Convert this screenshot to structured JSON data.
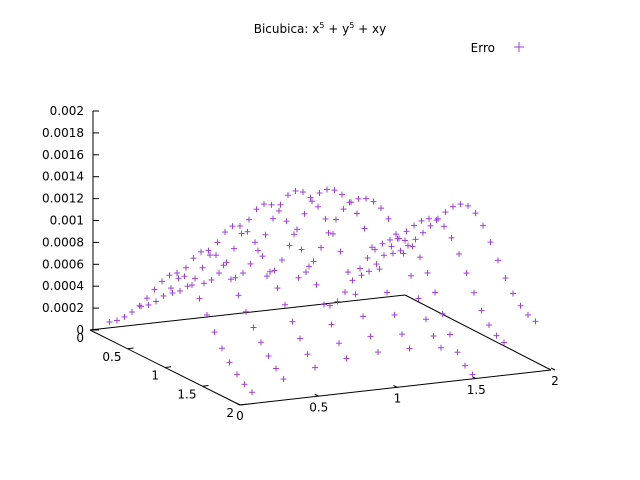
{
  "chart_data": {
    "type": "scatter",
    "title": {
      "main": "Bicubica: x",
      "exp1": "5",
      "mid": " + y",
      "exp2": "5",
      "tail": " + xy"
    },
    "legend": {
      "label": "Erro",
      "placement": "top-right"
    },
    "series_color": "#a040e0",
    "x_range": [
      0,
      2
    ],
    "y_range": [
      0,
      2
    ],
    "z_range": [
      0,
      0.002
    ],
    "x_ticks": [
      "0",
      "0.5",
      "1",
      "1.5",
      "2"
    ],
    "y_ticks": [
      "0",
      "0.5",
      "1",
      "1.5",
      "2"
    ],
    "z_ticks": [
      "0",
      "0.0002",
      "0.0004",
      "0.0006",
      "0.0008",
      "0.001",
      "0.0012",
      "0.0014",
      "0.0016",
      "0.0018",
      "0.002"
    ],
    "grid": false,
    "sampling": {
      "x_start": 0.05,
      "x_step": 0.1,
      "x_count": 20,
      "y_start": 0.1,
      "y_step": 0.2,
      "y_count": 10
    },
    "error_profile": {
      "along_x_max": 0.00075,
      "along_y_max": 0.00032,
      "along_y_peak": 0.00043,
      "cross_term": 0.0004,
      "ripple": 3e-05
    }
  }
}
